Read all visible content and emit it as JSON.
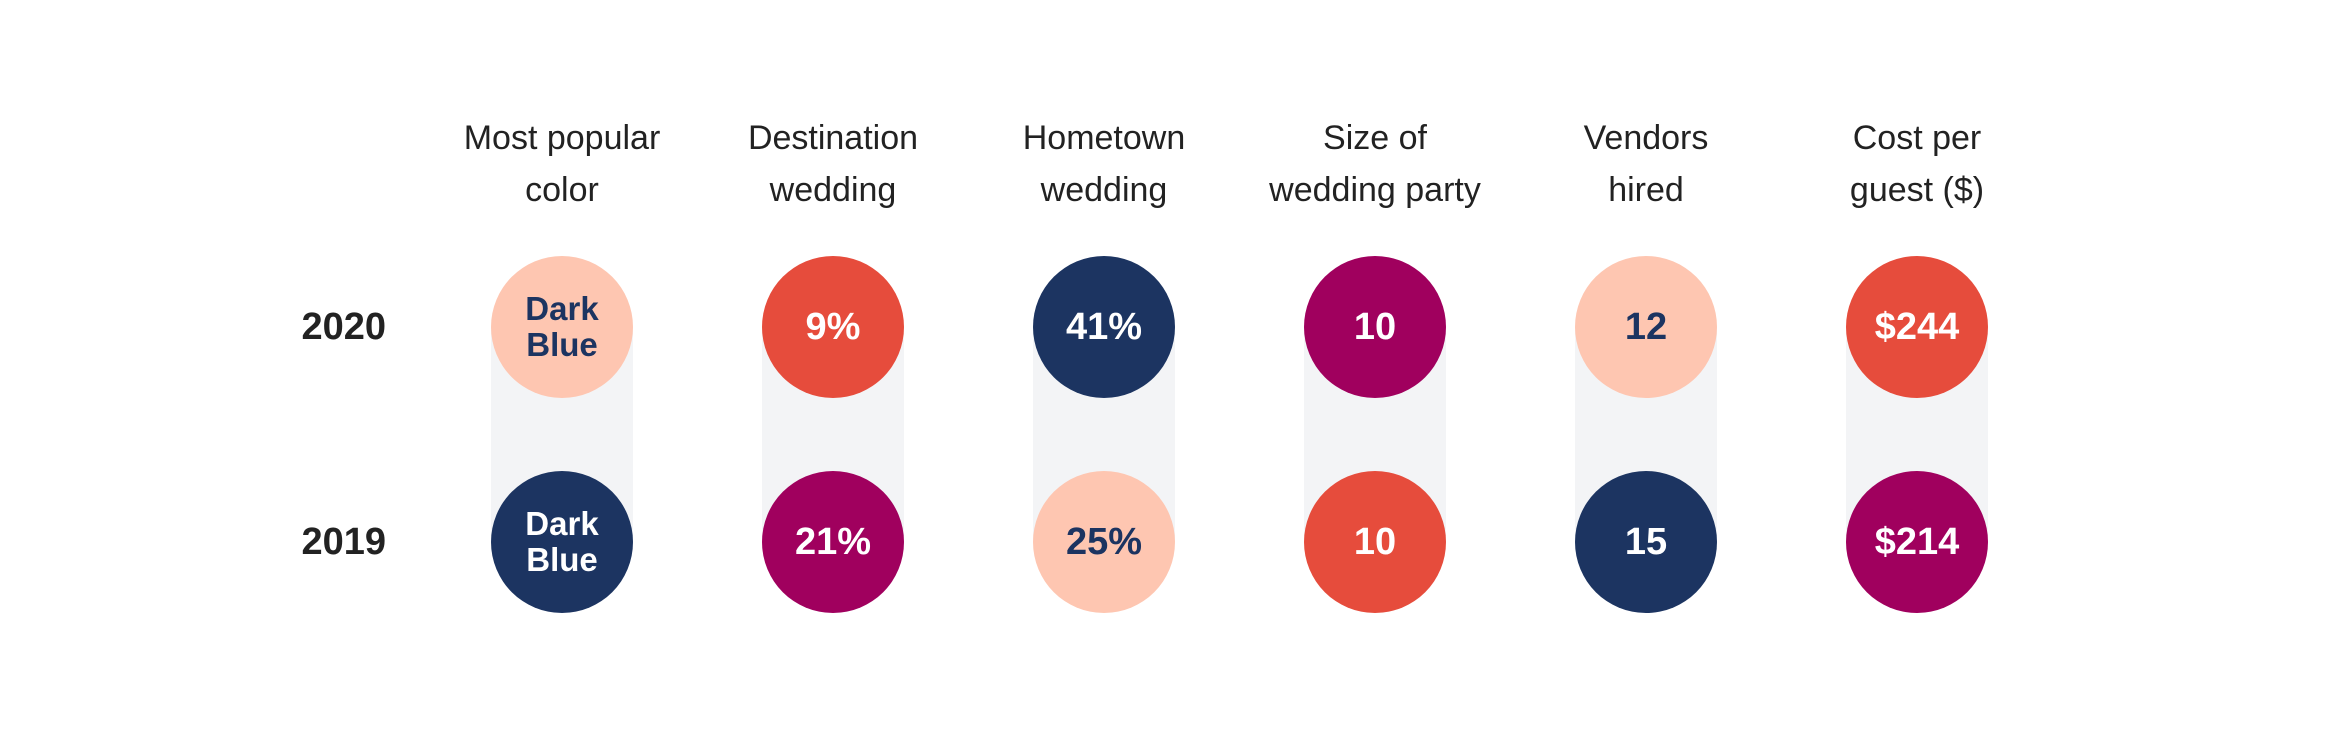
{
  "chart_data": {
    "type": "table",
    "title": "",
    "rows": [
      "2020",
      "2019"
    ],
    "columns": [
      {
        "header": "Most popular\ncolor",
        "values": [
          {
            "text": "Dark\nBlue",
            "color": "#fec6b1",
            "text_color": "#1c3461"
          },
          {
            "text": "Dark\nBlue",
            "color": "#1c3461",
            "text_color": "#ffffff"
          }
        ]
      },
      {
        "header": "Destination\nwedding",
        "values": [
          {
            "text": "9%",
            "value": 9,
            "color": "#e64c3c",
            "text_color": "#ffffff"
          },
          {
            "text": "21%",
            "value": 21,
            "color": "#a0005e",
            "text_color": "#ffffff"
          }
        ]
      },
      {
        "header": "Hometown\nwedding",
        "values": [
          {
            "text": "41%",
            "value": 41,
            "color": "#1c3461",
            "text_color": "#ffffff"
          },
          {
            "text": "25%",
            "value": 25,
            "color": "#fec6b1",
            "text_color": "#1c3461"
          }
        ]
      },
      {
        "header": "Size of\nwedding party",
        "values": [
          {
            "text": "10",
            "value": 10,
            "color": "#a0005e",
            "text_color": "#ffffff"
          },
          {
            "text": "10",
            "value": 10,
            "color": "#e64c3c",
            "text_color": "#ffffff"
          }
        ]
      },
      {
        "header": "Vendors\nhired",
        "values": [
          {
            "text": "12",
            "value": 12,
            "color": "#fec6b1",
            "text_color": "#1c3461"
          },
          {
            "text": "15",
            "value": 15,
            "color": "#1c3461",
            "text_color": "#ffffff"
          }
        ]
      },
      {
        "header": "Cost per\nguest ($)",
        "values": [
          {
            "text": "$244",
            "value": 244,
            "color": "#e64c3c",
            "text_color": "#ffffff"
          },
          {
            "text": "$214",
            "value": 214,
            "color": "#a0005e",
            "text_color": "#ffffff"
          }
        ]
      }
    ],
    "colors": {
      "dark_blue": "#1c3461",
      "peach": "#fec6b1",
      "red_orange": "#e64c3c",
      "magenta": "#a0005e",
      "band": "#f3f4f6",
      "text": "#222222"
    }
  }
}
